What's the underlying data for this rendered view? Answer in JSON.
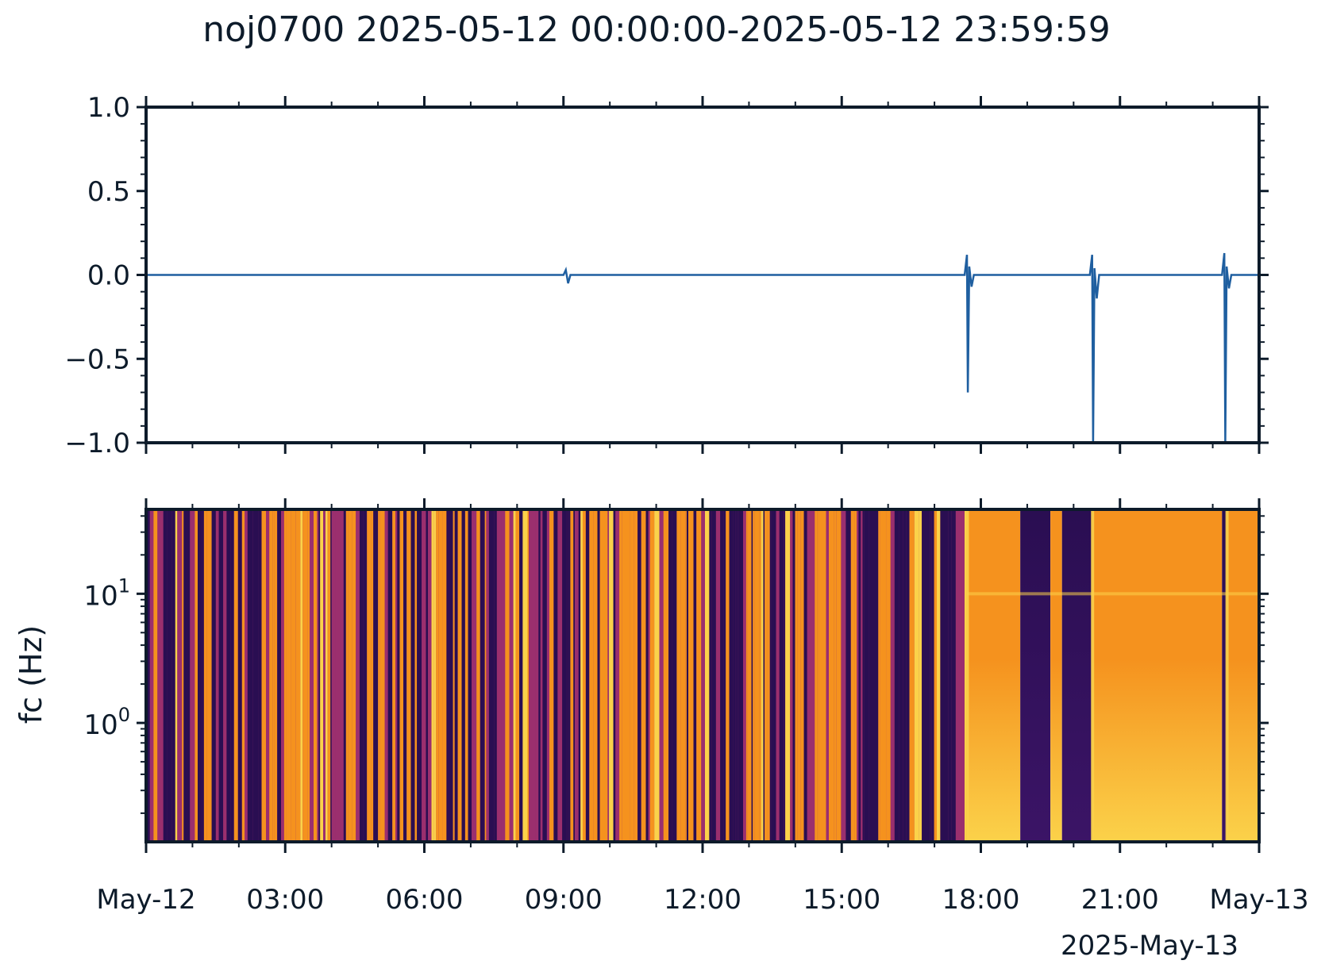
{
  "title": "noj0700 2025-05-12 00:00:00-2025-05-12 23:59:59",
  "colors": {
    "axis": "#0d1b2a",
    "trace": "#1f5fa0",
    "spec_low": "#2a0e52",
    "spec_mid": "#9b2f6e",
    "spec_high": "#f5921e",
    "spec_peak": "#fbd24a"
  },
  "chart_data": [
    {
      "type": "line",
      "panel": "waveform",
      "xlim": [
        0,
        24
      ],
      "ylim": [
        -1.0,
        1.0
      ],
      "ytick_labels": [
        "1.0",
        "0.5",
        "0.0",
        "−0.5",
        "−1.0"
      ],
      "yticks": [
        1.0,
        0.5,
        0.0,
        -0.5,
        -1.0
      ],
      "grid": false,
      "series": [
        {
          "x": [
            0,
            9.0,
            9.05,
            9.1,
            9.15,
            17.65,
            17.7,
            17.72,
            17.75,
            17.8,
            17.85,
            20.35,
            20.4,
            20.42,
            20.45,
            20.5,
            20.55,
            23.2,
            23.25,
            23.27,
            23.3,
            23.35,
            23.4,
            24
          ],
          "y": [
            0,
            0,
            0.03,
            -0.05,
            0,
            0,
            0.12,
            -0.7,
            0.05,
            -0.07,
            0,
            0,
            0.12,
            -1.0,
            0.04,
            -0.14,
            0,
            0,
            0.13,
            -1.0,
            0.05,
            -0.08,
            0,
            0
          ]
        }
      ]
    },
    {
      "type": "heatmap",
      "panel": "spectrogram",
      "ylabel": "fc (Hz)",
      "yscale": "log",
      "ylim": [
        0.12,
        45
      ],
      "ytick_labels": [
        {
          "base": "10",
          "exp": "1",
          "value": 10
        },
        {
          "base": "10",
          "exp": "0",
          "value": 1
        }
      ],
      "xlim": [
        0,
        24
      ],
      "xtick_labels": [
        "May-12",
        "03:00",
        "06:00",
        "09:00",
        "12:00",
        "15:00",
        "18:00",
        "21:00",
        "May-13"
      ],
      "xticks": [
        0,
        3,
        6,
        9,
        12,
        15,
        18,
        21,
        24
      ],
      "xaxis_offset_label": "2025-May-13",
      "bands": [
        {
          "start": 0,
          "end": 17.7,
          "level": "striped"
        },
        {
          "start": 17.7,
          "end": 18.85,
          "level": "high"
        },
        {
          "start": 18.85,
          "end": 19.5,
          "level": "low"
        },
        {
          "start": 19.5,
          "end": 19.75,
          "level": "high"
        },
        {
          "start": 19.75,
          "end": 20.4,
          "level": "low"
        },
        {
          "start": 20.4,
          "end": 23.2,
          "level": "high"
        },
        {
          "start": 23.2,
          "end": 23.3,
          "level": "low"
        },
        {
          "start": 23.3,
          "end": 24,
          "level": "high"
        }
      ]
    }
  ]
}
